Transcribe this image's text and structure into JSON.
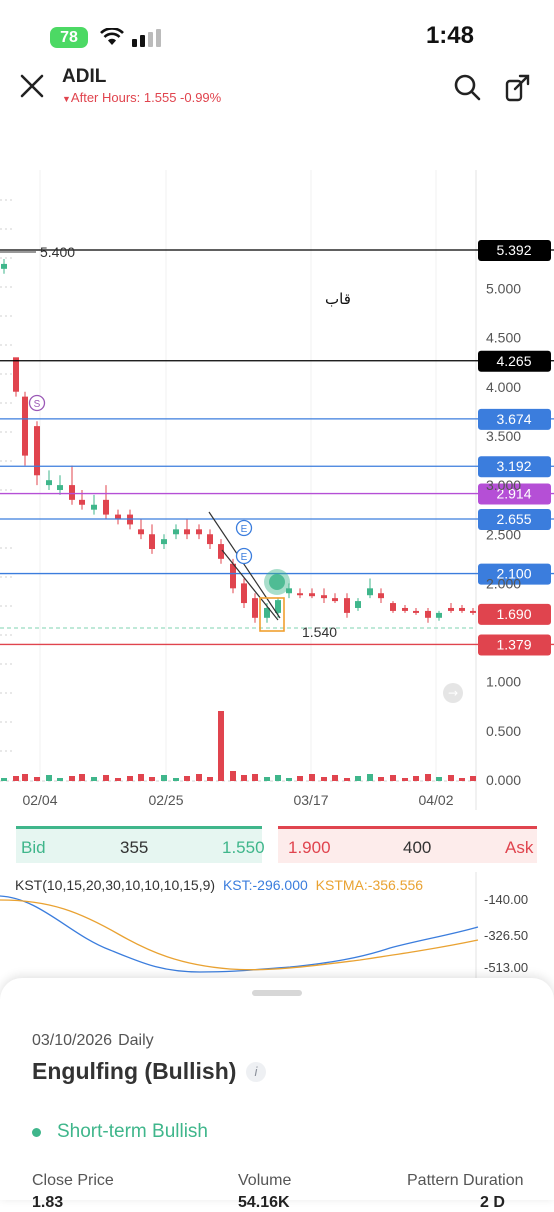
{
  "status_bar": {
    "battery": "78",
    "time": "1:48"
  },
  "header": {
    "ticker": "ADIL",
    "after_hours": "After Hours: 1.555 -0.99%"
  },
  "chart": {
    "annotation": "قاب",
    "level_labels": [
      "5.400",
      "1.540"
    ],
    "y_ticks": [
      "5.000",
      "4.500",
      "4.000",
      "3.500",
      "3.000",
      "2.500",
      "2.000",
      "1.000",
      "0.500",
      "0.000"
    ],
    "x_dates": [
      "02/04",
      "02/25",
      "03/17",
      "04/02"
    ],
    "markers": [
      "S",
      "E",
      "E"
    ],
    "price_lines": [
      {
        "label": "5.392",
        "value": 5.392,
        "color": "#000000"
      },
      {
        "label": "4.265",
        "value": 4.265,
        "color": "#000000"
      },
      {
        "label": "3.674",
        "value": 3.674,
        "color": "#3b7ddd"
      },
      {
        "label": "3.192",
        "value": 3.192,
        "color": "#3b7ddd"
      },
      {
        "label": "2.914",
        "value": 2.914,
        "color": "#b54fd6"
      },
      {
        "label": "2.655",
        "value": 2.655,
        "color": "#3b7ddd"
      },
      {
        "label": "2.100",
        "value": 2.1,
        "color": "#3b7ddd"
      },
      {
        "label": "1.690",
        "value": 1.69,
        "color": "#e0444e"
      },
      {
        "label": "1.379",
        "value": 1.379,
        "color": "#e0444e"
      }
    ]
  },
  "bid_ask": {
    "bid_label": "Bid",
    "bid_size": "355",
    "bid_price": "1.550",
    "ask_price": "1.900",
    "ask_size": "400",
    "ask_label": "Ask"
  },
  "kst": {
    "name": "KST(10,15,20,30,10,10,10,15,9)",
    "kst_value": "KST:-296.000",
    "kstma_value": "KSTMA:-356.556",
    "ticks": [
      "-140.00",
      "-326.50",
      "-513.00"
    ]
  },
  "sheet": {
    "date": "03/10/2026",
    "period": "Daily",
    "pattern": "Engulfing (Bullish)",
    "trend": "Short-term Bullish",
    "columns": [
      "Close Price",
      "Volume",
      "Pattern Duration"
    ],
    "values": [
      "1.83",
      "54.16K",
      "2 D"
    ]
  }
}
